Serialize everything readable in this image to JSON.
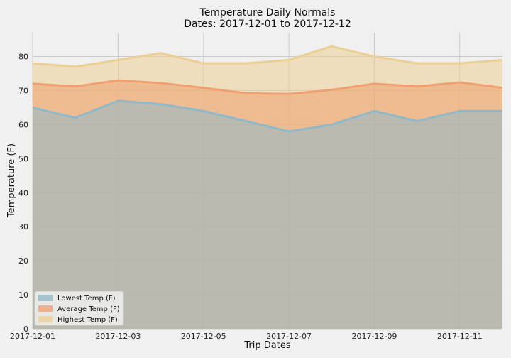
{
  "chart_data": {
    "type": "area",
    "title": "Temperature Daily Normals",
    "subtitle": "Dates: 2017-12-01 to 2017-12-12",
    "xlabel": "Trip Dates",
    "ylabel": "Temperature (F)",
    "x": [
      "2017-12-01",
      "2017-12-02",
      "2017-12-03",
      "2017-12-04",
      "2017-12-05",
      "2017-12-06",
      "2017-12-07",
      "2017-12-08",
      "2017-12-09",
      "2017-12-10",
      "2017-12-11",
      "2017-12-12"
    ],
    "x_tick_labels": [
      "2017-12-01",
      "2017-12-03",
      "2017-12-05",
      "2017-12-07",
      "2017-12-09",
      "2017-12-11"
    ],
    "y_ticks": [
      0,
      10,
      20,
      30,
      40,
      50,
      60,
      70,
      80
    ],
    "ylim": [
      0,
      87
    ],
    "grid": true,
    "stacked": false,
    "legend_position": "lower-left",
    "series": [
      {
        "name": "Lowest Temp (F)",
        "color": "#8fb8c8",
        "values": [
          65,
          62,
          67,
          66,
          64,
          61,
          58,
          60,
          64,
          61,
          64,
          64
        ]
      },
      {
        "name": "Average Temp (F)",
        "color": "#f0a070",
        "values": [
          72,
          71.2,
          73,
          72.2,
          70.8,
          69.2,
          69,
          70.2,
          72,
          71.2,
          72.4,
          70.8
        ]
      },
      {
        "name": "Highest Temp (F)",
        "color": "#eccf94",
        "values": [
          78,
          77,
          79,
          81,
          78,
          78,
          79,
          83,
          80,
          78,
          78,
          79
        ]
      }
    ]
  }
}
